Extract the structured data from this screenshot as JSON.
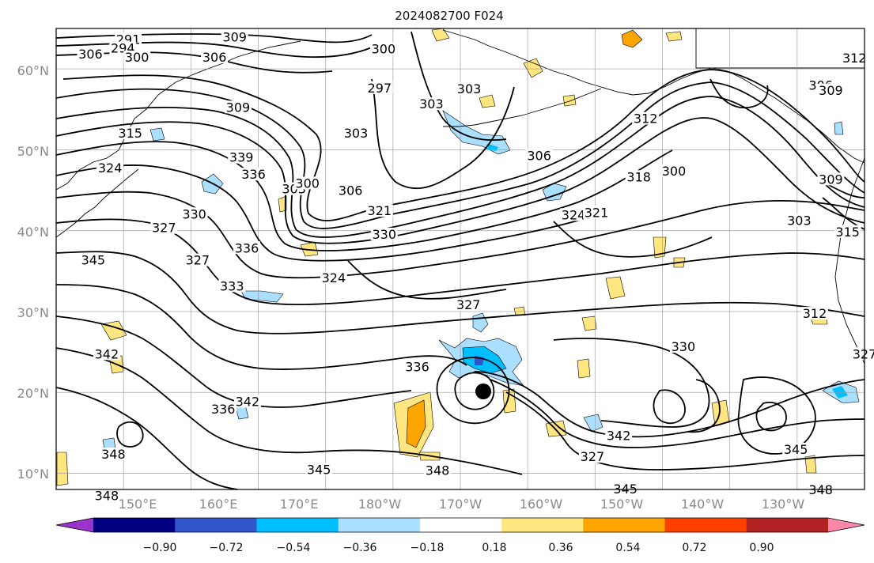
{
  "title": "2024082700 F024",
  "latitude_labels": [
    "60°N",
    "50°N",
    "40°N",
    "30°N",
    "20°N",
    "10°N"
  ],
  "longitude_labels": [
    "150°E",
    "160°E",
    "170°E",
    "180°W",
    "170°W",
    "160°W",
    "150°W",
    "140°W",
    "130°W"
  ],
  "colorbar": {
    "tick_labels": [
      "−0.90",
      "−0.72",
      "−0.54",
      "−0.36",
      "−0.18",
      "0.18",
      "0.36",
      "0.54",
      "0.72",
      "0.90"
    ],
    "colors": [
      "#9933cc",
      "#000080",
      "#3355cc",
      "#00bfff",
      "#aadfff",
      "#ffffff",
      "#ffe680",
      "#ffa500",
      "#ff4000",
      "#b22222",
      "#ff88aa"
    ]
  },
  "contour_labels": [
    {
      "text": "291",
      "lon": 150.7,
      "lat": 63.3
    },
    {
      "text": "294",
      "lon": 149.9,
      "lat": 62.2
    },
    {
      "text": "306",
      "lon": 145.1,
      "lat": 61.5
    },
    {
      "text": "300",
      "lon": 152.0,
      "lat": 61.1
    },
    {
      "text": "309",
      "lon": 166.5,
      "lat": 63.6
    },
    {
      "text": "306",
      "lon": 163.5,
      "lat": 61.1
    },
    {
      "text": "300",
      "lon": 188.6,
      "lat": 62.1
    },
    {
      "text": "297",
      "lon": 188.0,
      "lat": 57.3
    },
    {
      "text": "303",
      "lon": 195.7,
      "lat": 55.3
    },
    {
      "text": "303",
      "lon": 184.5,
      "lat": 51.7
    },
    {
      "text": "309",
      "lon": 167.0,
      "lat": 54.9
    },
    {
      "text": "315",
      "lon": 151.0,
      "lat": 51.7
    },
    {
      "text": "324",
      "lon": 148.0,
      "lat": 47.4
    },
    {
      "text": "339",
      "lon": 167.5,
      "lat": 48.7
    },
    {
      "text": "336",
      "lon": 169.3,
      "lat": 46.6
    },
    {
      "text": "303",
      "lon": 175.3,
      "lat": 44.8
    },
    {
      "text": "300",
      "lon": 177.3,
      "lat": 45.5
    },
    {
      "text": "306",
      "lon": 183.7,
      "lat": 44.6
    },
    {
      "text": "321",
      "lon": 188.0,
      "lat": 42.1
    },
    {
      "text": "330",
      "lon": 160.5,
      "lat": 41.7
    },
    {
      "text": "327",
      "lon": 156.0,
      "lat": 40.0
    },
    {
      "text": "336",
      "lon": 168.3,
      "lat": 37.5
    },
    {
      "text": "327",
      "lon": 161.0,
      "lat": 36.0
    },
    {
      "text": "345",
      "lon": 145.5,
      "lat": 36.0
    },
    {
      "text": "333",
      "lon": 166.1,
      "lat": 32.8
    },
    {
      "text": "324",
      "lon": 181.2,
      "lat": 33.8
    },
    {
      "text": "330",
      "lon": 188.7,
      "lat": 39.2
    },
    {
      "text": "324",
      "lon": 216.8,
      "lat": 41.6
    },
    {
      "text": "321",
      "lon": 220.2,
      "lat": 41.9
    },
    {
      "text": "318",
      "lon": 226.5,
      "lat": 46.3
    },
    {
      "text": "312",
      "lon": 227.5,
      "lat": 53.5
    },
    {
      "text": "306",
      "lon": 211.7,
      "lat": 48.9
    },
    {
      "text": "300",
      "lon": 231.7,
      "lat": 47.0
    },
    {
      "text": "303",
      "lon": 201.3,
      "lat": 57.2
    },
    {
      "text": "306",
      "lon": 253.5,
      "lat": 57.6
    },
    {
      "text": "309",
      "lon": 255.0,
      "lat": 57.0
    },
    {
      "text": "312",
      "lon": 258.5,
      "lat": 61.0
    },
    {
      "text": "309",
      "lon": 255.0,
      "lat": 46.0
    },
    {
      "text": "303",
      "lon": 250.3,
      "lat": 40.9
    },
    {
      "text": "315",
      "lon": 257.5,
      "lat": 39.5
    },
    {
      "text": "327",
      "lon": 201.2,
      "lat": 30.5
    },
    {
      "text": "312",
      "lon": 252.6,
      "lat": 29.4
    },
    {
      "text": "330",
      "lon": 233.1,
      "lat": 25.3
    },
    {
      "text": "327",
      "lon": 260.0,
      "lat": 24.4
    },
    {
      "text": "342",
      "lon": 147.5,
      "lat": 24.4
    },
    {
      "text": "336",
      "lon": 193.6,
      "lat": 22.8
    },
    {
      "text": "336",
      "lon": 164.8,
      "lat": 17.6
    },
    {
      "text": "342",
      "lon": 168.4,
      "lat": 18.5
    },
    {
      "text": "348",
      "lon": 148.5,
      "lat": 12.0
    },
    {
      "text": "345",
      "lon": 179.0,
      "lat": 10.1
    },
    {
      "text": "348",
      "lon": 196.6,
      "lat": 10.0
    },
    {
      "text": "342",
      "lon": 223.5,
      "lat": 14.3
    },
    {
      "text": "345",
      "lon": 249.8,
      "lat": 12.6
    },
    {
      "text": "327",
      "lon": 219.6,
      "lat": 11.7
    },
    {
      "text": "348",
      "lon": 147.5,
      "lat": 6.9
    },
    {
      "text": "345",
      "lon": 224.5,
      "lat": 7.7
    },
    {
      "text": "348",
      "lon": 253.5,
      "lat": 7.6
    }
  ]
}
